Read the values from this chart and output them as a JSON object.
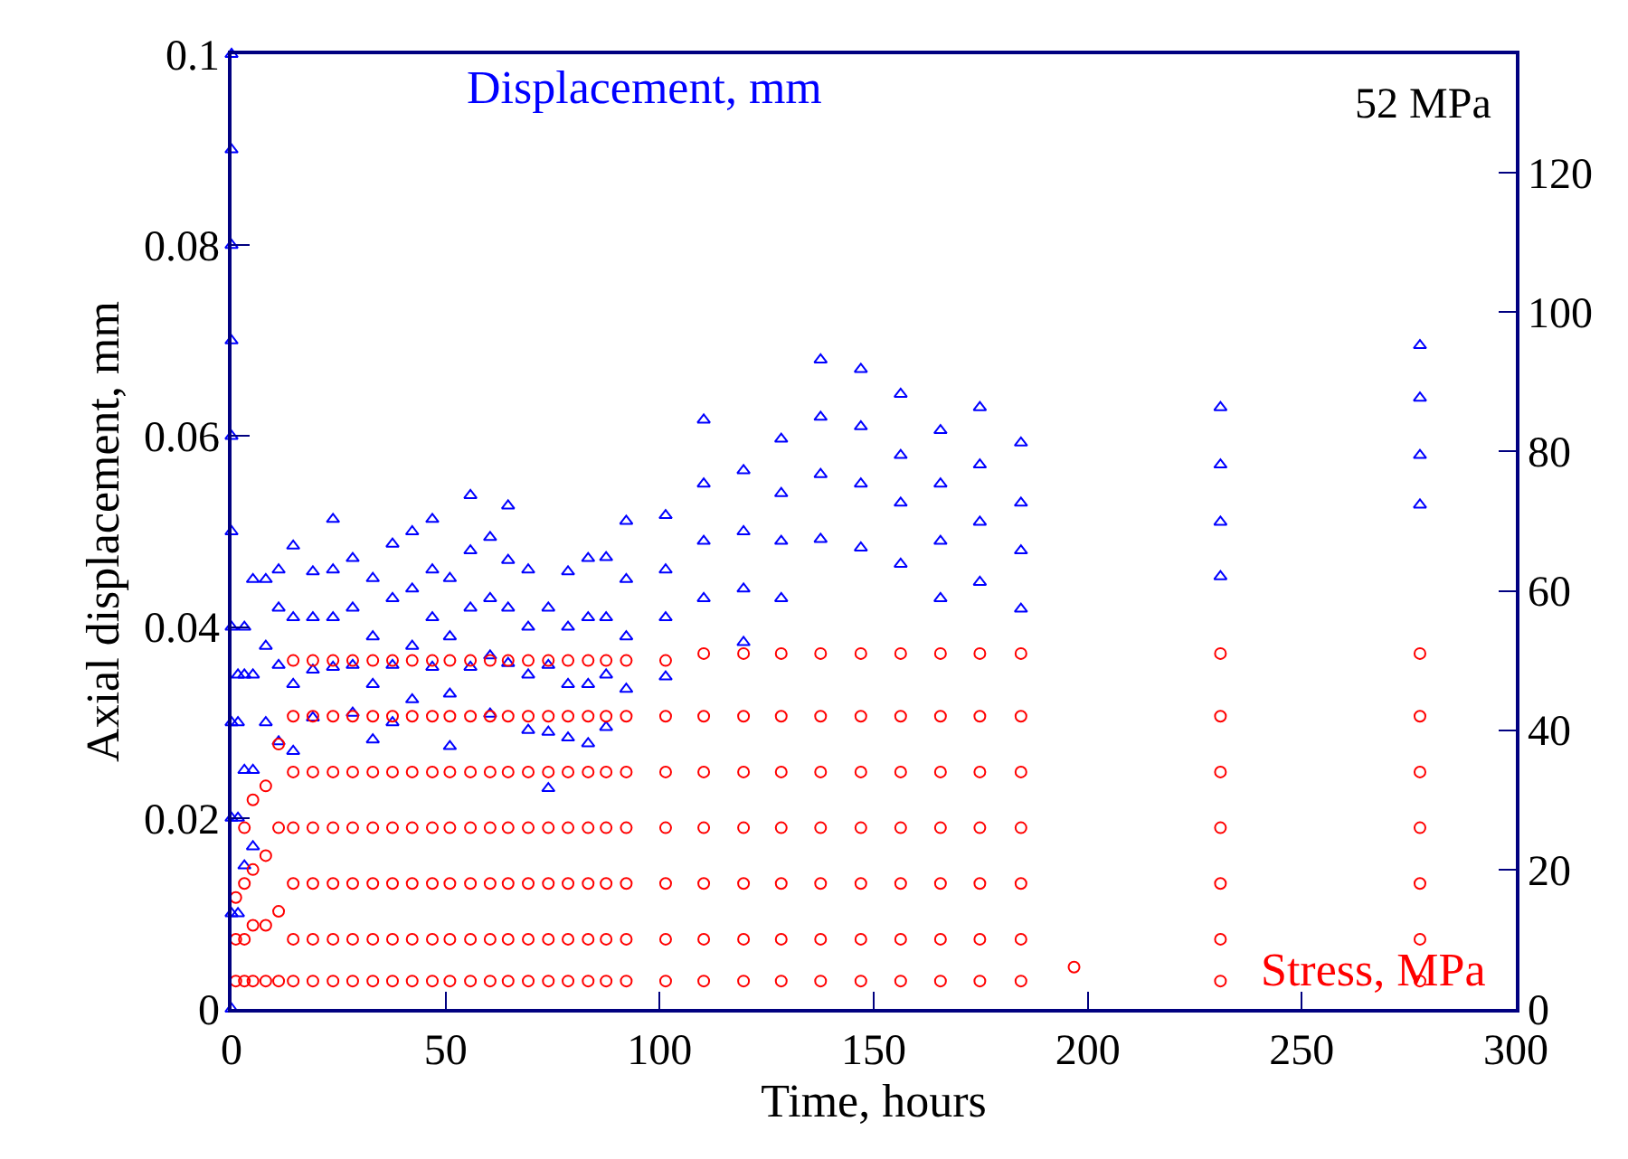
{
  "chart_data": {
    "type": "scatter",
    "xlabel": "Time, hours",
    "ylabel": "Axial displacement, mm",
    "xlim": [
      0,
      300
    ],
    "xticks": [
      0,
      50,
      100,
      150,
      200,
      250,
      300
    ],
    "ylim": [
      0,
      0.1
    ],
    "yticks": [
      0,
      0.02,
      0.04,
      0.06,
      0.08,
      0.1
    ],
    "y2lim": [
      0,
      137
    ],
    "y2ticks": [
      0,
      20,
      40,
      60,
      80,
      100,
      120
    ],
    "annotations": [
      "52 MPa"
    ],
    "legend": false,
    "series": [
      {
        "name": "Displacement, mm",
        "color": "#0000ff",
        "marker": "triangle",
        "x": [
          0,
          0,
          0,
          0,
          0,
          0,
          0,
          0,
          0,
          0,
          0,
          1.5,
          1.5,
          1.5,
          1.5,
          3,
          3,
          3,
          3,
          5,
          5,
          5,
          5,
          8,
          8,
          8,
          11,
          11,
          11,
          11,
          14.4,
          14.4,
          14.4,
          14.4,
          19,
          19,
          19,
          19,
          23.7,
          23.7,
          23.7,
          23.7,
          28.3,
          28.3,
          28.3,
          28.3,
          33,
          33,
          33,
          33,
          37.6,
          37.6,
          37.6,
          37.6,
          42.2,
          42.2,
          42.2,
          42.2,
          46.9,
          46.9,
          46.9,
          46.9,
          51,
          51,
          51,
          51,
          55.8,
          55.8,
          55.8,
          55.8,
          60.4,
          60.4,
          60.4,
          60.4,
          64.6,
          64.6,
          64.6,
          64.6,
          69.3,
          69.3,
          69.3,
          69.3,
          74,
          74,
          74,
          74,
          78.6,
          78.6,
          78.6,
          78.6,
          83.3,
          83.3,
          83.3,
          83.3,
          87.5,
          87.5,
          87.5,
          87.5,
          92.2,
          92.2,
          92.2,
          92.2,
          101.4,
          101.4,
          101.4,
          101.4,
          110.3,
          110.3,
          110.3,
          110.3,
          119.6,
          119.6,
          119.6,
          119.6,
          128.4,
          128.4,
          128.4,
          128.4,
          137.6,
          137.6,
          137.6,
          137.6,
          147,
          147,
          147,
          147,
          156.3,
          156.3,
          156.3,
          156.3,
          165.6,
          165.6,
          165.6,
          165.6,
          174.8,
          174.8,
          174.8,
          174.8,
          184.4,
          184.4,
          184.4,
          184.4,
          231,
          231,
          231,
          231,
          277.6,
          277.6,
          277.6,
          277.6
        ],
        "values": [
          0,
          0.01,
          0.02,
          0.03,
          0.04,
          0.05,
          0.06,
          0.07,
          0.08,
          0.09,
          0.1,
          0.01,
          0.02,
          0.03,
          0.035,
          0.015,
          0.025,
          0.035,
          0.04,
          0.017,
          0.025,
          0.035,
          0.045,
          0.03,
          0.038,
          0.045,
          0.028,
          0.036,
          0.042,
          0.046,
          0.027,
          0.034,
          0.041,
          0.0485,
          0.0305,
          0.0355,
          0.041,
          0.0458,
          0.0358,
          0.041,
          0.046,
          0.0513,
          0.031,
          0.036,
          0.042,
          0.0472,
          0.0282,
          0.034,
          0.039,
          0.0451,
          0.03,
          0.036,
          0.043,
          0.0487,
          0.0324,
          0.038,
          0.044,
          0.05,
          0.0358,
          0.041,
          0.046,
          0.0513,
          0.0275,
          0.033,
          0.039,
          0.0451,
          0.0358,
          0.042,
          0.048,
          0.0538,
          0.0309,
          0.037,
          0.043,
          0.0494,
          0.0362,
          0.042,
          0.047,
          0.0527,
          0.0292,
          0.035,
          0.04,
          0.046,
          0.0231,
          0.029,
          0.036,
          0.042,
          0.0284,
          0.034,
          0.04,
          0.0458,
          0.0278,
          0.034,
          0.041,
          0.0472,
          0.0295,
          0.035,
          0.041,
          0.0473,
          0.0335,
          0.039,
          0.045,
          0.0511,
          0.0348,
          0.041,
          0.046,
          0.0517,
          0.043,
          0.049,
          0.055,
          0.0617,
          0.0384,
          0.044,
          0.05,
          0.0564,
          0.043,
          0.049,
          0.054,
          0.0597,
          0.0492,
          0.056,
          0.062,
          0.068,
          0.0483,
          0.055,
          0.061,
          0.067,
          0.0466,
          0.053,
          0.058,
          0.0644,
          0.043,
          0.049,
          0.055,
          0.0606,
          0.0447,
          0.051,
          0.057,
          0.063,
          0.0419,
          0.048,
          0.053,
          0.0593,
          0.0453,
          0.051,
          0.057,
          0.063,
          0.0528,
          0.058,
          0.064,
          0.0695
        ]
      },
      {
        "name": "Stress, MPa",
        "color": "#ff0000",
        "marker": "circle",
        "axis": "y2",
        "x": [
          1,
          1,
          1,
          3,
          3,
          3,
          3,
          5,
          5,
          5,
          5,
          8,
          8,
          8,
          8,
          11,
          11,
          11,
          11,
          14.4,
          14.4,
          14.4,
          14.4,
          14.4,
          14.4,
          14.4,
          19,
          19,
          19,
          19,
          19,
          19,
          19,
          23.7,
          23.7,
          23.7,
          23.7,
          23.7,
          23.7,
          23.7,
          28.3,
          28.3,
          28.3,
          28.3,
          28.3,
          28.3,
          28.3,
          33,
          33,
          33,
          33,
          33,
          33,
          33,
          37.6,
          37.6,
          37.6,
          37.6,
          37.6,
          37.6,
          37.6,
          42.2,
          42.2,
          42.2,
          42.2,
          42.2,
          42.2,
          42.2,
          46.9,
          46.9,
          46.9,
          46.9,
          46.9,
          46.9,
          46.9,
          51,
          51,
          51,
          51,
          51,
          51,
          51,
          55.8,
          55.8,
          55.8,
          55.8,
          55.8,
          55.8,
          55.8,
          60.4,
          60.4,
          60.4,
          60.4,
          60.4,
          60.4,
          60.4,
          64.6,
          64.6,
          64.6,
          64.6,
          64.6,
          64.6,
          64.6,
          69.3,
          69.3,
          69.3,
          69.3,
          69.3,
          69.3,
          69.3,
          74,
          74,
          74,
          74,
          74,
          74,
          74,
          78.6,
          78.6,
          78.6,
          78.6,
          78.6,
          78.6,
          78.6,
          83.3,
          83.3,
          83.3,
          83.3,
          83.3,
          83.3,
          83.3,
          87.5,
          87.5,
          87.5,
          87.5,
          87.5,
          87.5,
          87.5,
          92.2,
          92.2,
          92.2,
          92.2,
          92.2,
          92.2,
          92.2,
          101.4,
          101.4,
          101.4,
          101.4,
          101.4,
          101.4,
          101.4,
          110.3,
          110.3,
          110.3,
          110.3,
          110.3,
          110.3,
          110.3,
          119.6,
          119.6,
          119.6,
          119.6,
          119.6,
          119.6,
          119.6,
          128.4,
          128.4,
          128.4,
          128.4,
          128.4,
          128.4,
          128.4,
          137.6,
          137.6,
          137.6,
          137.6,
          137.6,
          137.6,
          137.6,
          147,
          147,
          147,
          147,
          147,
          147,
          147,
          156.3,
          156.3,
          156.3,
          156.3,
          156.3,
          156.3,
          156.3,
          165.6,
          165.6,
          165.6,
          165.6,
          165.6,
          165.6,
          165.6,
          174.8,
          174.8,
          174.8,
          174.8,
          174.8,
          174.8,
          174.8,
          184.4,
          184.4,
          184.4,
          184.4,
          184.4,
          184.4,
          184.4,
          196.8,
          231,
          231,
          231,
          231,
          231,
          231,
          231,
          277.6,
          277.6,
          277.6,
          277.6,
          277.6,
          277.6,
          277.6
        ],
        "values": [
          4,
          10,
          16,
          4,
          10,
          18,
          26,
          4,
          12,
          20,
          30,
          4,
          12,
          22,
          32,
          4,
          14,
          26,
          38,
          4,
          10,
          18,
          26,
          34,
          42,
          50,
          4,
          10,
          18,
          26,
          34,
          42,
          50,
          4,
          10,
          18,
          26,
          34,
          42,
          50,
          4,
          10,
          18,
          26,
          34,
          42,
          50,
          4,
          10,
          18,
          26,
          34,
          42,
          50,
          4,
          10,
          18,
          26,
          34,
          42,
          50,
          4,
          10,
          18,
          26,
          34,
          42,
          50,
          4,
          10,
          18,
          26,
          34,
          42,
          50,
          4,
          10,
          18,
          26,
          34,
          42,
          50,
          4,
          10,
          18,
          26,
          34,
          42,
          50,
          4,
          10,
          18,
          26,
          34,
          42,
          50,
          4,
          10,
          18,
          26,
          34,
          42,
          50,
          4,
          10,
          18,
          26,
          34,
          42,
          50,
          4,
          10,
          18,
          26,
          34,
          42,
          50,
          4,
          10,
          18,
          26,
          34,
          42,
          50,
          4,
          10,
          18,
          26,
          34,
          42,
          50,
          4,
          10,
          18,
          26,
          34,
          42,
          50,
          4,
          10,
          18,
          26,
          34,
          42,
          50,
          4,
          10,
          18,
          26,
          34,
          42,
          50,
          4,
          10,
          18,
          26,
          34,
          42,
          51,
          4,
          10,
          18,
          26,
          34,
          42,
          51,
          4,
          10,
          18,
          26,
          34,
          42,
          51,
          4,
          10,
          18,
          26,
          34,
          42,
          51,
          4,
          10,
          18,
          26,
          34,
          42,
          51,
          4,
          10,
          18,
          26,
          34,
          42,
          51,
          4,
          10,
          18,
          26,
          34,
          42,
          51,
          4,
          10,
          18,
          26,
          34,
          42,
          51,
          4,
          10,
          18,
          26,
          34,
          42,
          51,
          6,
          4,
          10,
          18,
          26,
          34,
          42,
          51,
          4,
          10,
          18,
          26,
          34,
          42,
          51
        ]
      }
    ]
  }
}
